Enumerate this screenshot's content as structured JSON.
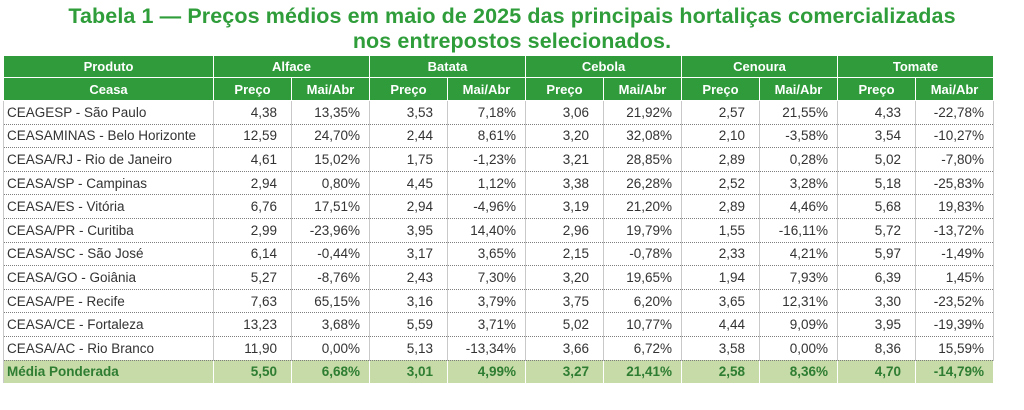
{
  "title": {
    "line1": "Tabela 1 — Preços médios em maio de 2025 das principais hortaliças comercializadas",
    "line2": "nos entrepostos selecionados."
  },
  "header": {
    "first_col_top": "Produto",
    "first_col_bottom": "Ceasa",
    "products": [
      "Alface",
      "Batata",
      "Cebola",
      "Cenoura",
      "Tomate"
    ],
    "sub_price": "Preço",
    "sub_change": "Mai/Abr"
  },
  "rows": [
    {
      "name": "CEAGESP - São Paulo",
      "values": [
        "4,38",
        "13,35%",
        "3,53",
        "7,18%",
        "3,06",
        "21,92%",
        "2,57",
        "21,55%",
        "4,33",
        "-22,78%"
      ]
    },
    {
      "name": "CEASAMINAS - Belo Horizonte",
      "values": [
        "12,59",
        "24,70%",
        "2,44",
        "8,61%",
        "3,20",
        "32,08%",
        "2,10",
        "-3,58%",
        "3,54",
        "-10,27%"
      ]
    },
    {
      "name": "CEASA/RJ - Rio de Janeiro",
      "values": [
        "4,61",
        "15,02%",
        "1,75",
        "-1,23%",
        "3,21",
        "28,85%",
        "2,89",
        "0,28%",
        "5,02",
        "-7,80%"
      ]
    },
    {
      "name": "CEASA/SP - Campinas",
      "values": [
        "2,94",
        "0,80%",
        "4,45",
        "1,12%",
        "3,38",
        "26,28%",
        "2,52",
        "3,28%",
        "5,18",
        "-25,83%"
      ]
    },
    {
      "name": "CEASA/ES - Vitória",
      "values": [
        "6,76",
        "17,51%",
        "2,94",
        "-4,96%",
        "3,19",
        "21,20%",
        "2,89",
        "4,46%",
        "5,68",
        "19,83%"
      ]
    },
    {
      "name": "CEASA/PR - Curitiba",
      "values": [
        "2,99",
        "-23,96%",
        "3,95",
        "14,40%",
        "2,96",
        "19,79%",
        "1,55",
        "-16,11%",
        "5,72",
        "-13,72%"
      ]
    },
    {
      "name": "CEASA/SC - São José",
      "values": [
        "6,14",
        "-0,44%",
        "3,17",
        "3,65%",
        "2,15",
        "-0,78%",
        "2,33",
        "4,21%",
        "5,97",
        "-1,49%"
      ]
    },
    {
      "name": "CEASA/GO - Goiânia",
      "values": [
        "5,27",
        "-8,76%",
        "2,43",
        "7,30%",
        "3,20",
        "19,65%",
        "1,94",
        "7,93%",
        "6,39",
        "1,45%"
      ]
    },
    {
      "name": "CEASA/PE - Recife",
      "values": [
        "7,63",
        "65,15%",
        "3,16",
        "3,79%",
        "3,75",
        "6,20%",
        "3,65",
        "12,31%",
        "3,30",
        "-23,52%"
      ]
    },
    {
      "name": "CEASA/CE - Fortaleza",
      "values": [
        "13,23",
        "3,68%",
        "5,59",
        "3,71%",
        "5,02",
        "10,77%",
        "4,44",
        "9,09%",
        "3,95",
        "-19,39%"
      ]
    },
    {
      "name": "CEASA/AC - Rio Branco",
      "values": [
        "11,90",
        "0,00%",
        "5,13",
        "-13,34%",
        "3,66",
        "6,72%",
        "3,58",
        "0,00%",
        "8,36",
        "15,59%"
      ]
    }
  ],
  "average": {
    "name": "Média Ponderada",
    "values": [
      "5,50",
      "6,68%",
      "3,01",
      "4,99%",
      "3,27",
      "21,41%",
      "2,58",
      "8,36%",
      "4,70",
      "-14,79%"
    ]
  },
  "colors": {
    "title_green": "#2e9d3a",
    "header_green": "#2f9b3b",
    "average_row_bg": "#c6dba8"
  }
}
